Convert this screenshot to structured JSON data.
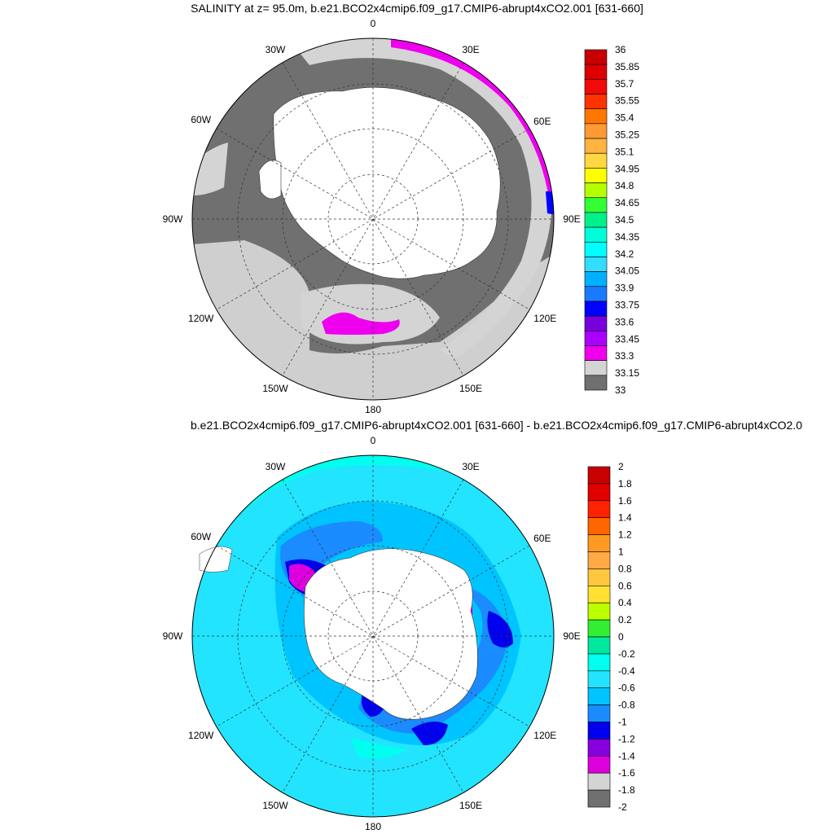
{
  "top_panel": {
    "title": "SALINITY at z=  95.0m, b.e21.BCO2x4cmip6.f09_g17.CMIP6-abrupt4xCO2.001 [631-660]",
    "lon_labels": [
      "0",
      "30E",
      "60E",
      "90E",
      "120E",
      "150E",
      "180",
      "150W",
      "120W",
      "90W",
      "60W",
      "30W"
    ],
    "colorbar": {
      "labels": [
        "36",
        "35.85",
        "35.7",
        "35.55",
        "35.4",
        "35.25",
        "35.1",
        "34.95",
        "34.8",
        "34.65",
        "34.5",
        "34.35",
        "34.2",
        "34.05",
        "33.9",
        "33.75",
        "33.6",
        "33.45",
        "33.3",
        "33.15",
        "33"
      ],
      "colors": [
        "#c80000",
        "#dd0000",
        "#f00a0a",
        "#ff3300",
        "#ff7700",
        "#ff9933",
        "#ffb340",
        "#ffd740",
        "#ffff00",
        "#b4ff00",
        "#33ff33",
        "#00f08c",
        "#00ffd9",
        "#00ffff",
        "#33ddff",
        "#00b0ff",
        "#1a7aff",
        "#0000ff",
        "#7700dd",
        "#aa00ff",
        "#ee00ee",
        "#d4d4d4",
        "#707070"
      ]
    }
  },
  "bottom_panel": {
    "title": "b.e21.BCO2x4cmip6.f09_g17.CMIP6-abrupt4xCO2.001 [631-660] - b.e21.BCO2x4cmip6.f09_g17.CMIP6-abrupt4xCO2.0",
    "lon_labels": [
      "0",
      "30E",
      "60E",
      "90E",
      "120E",
      "150E",
      "180",
      "150W",
      "120W",
      "90W",
      "60W",
      "30W"
    ],
    "colorbar": {
      "labels": [
        "2",
        "1.8",
        "1.6",
        "1.4",
        "1.2",
        "1",
        "0.8",
        "0.6",
        "0.4",
        "0.2",
        "0",
        "-0.2",
        "-0.4",
        "-0.6",
        "-0.8",
        "-1",
        "-1.2",
        "-1.4",
        "-1.6",
        "-1.8",
        "-2"
      ],
      "colors": [
        "#c80000",
        "#e00000",
        "#ff2200",
        "#ff6600",
        "#ff9922",
        "#ffaa44",
        "#ffc740",
        "#ffe033",
        "#bbff00",
        "#33ee33",
        "#00e8a0",
        "#00ffee",
        "#22e4ff",
        "#00c4ff",
        "#1a8cff",
        "#0000ee",
        "#8800dd",
        "#dd00dd",
        "#d4d4d4",
        "#707070"
      ]
    }
  }
}
